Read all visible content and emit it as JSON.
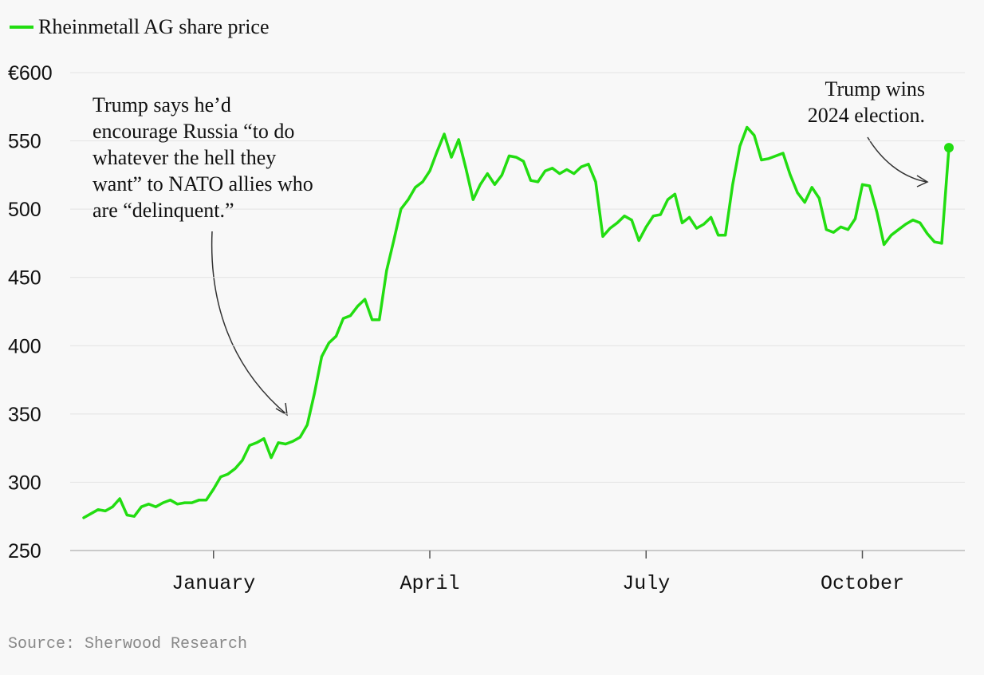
{
  "chart_data": {
    "type": "line",
    "title": "Rheinmetall AG share price",
    "annotations": [
      {
        "lines": [
          "Trump says he’d",
          "encourage Russia “to do",
          "whatever the hell they",
          "want” to NATO allies who",
          "are “delinquent.”"
        ]
      },
      {
        "lines": [
          "Trump wins",
          "2024 election."
        ]
      }
    ],
    "source": "Source: Sherwood Research",
    "categories": [
      null,
      null,
      null,
      null,
      null,
      null,
      null,
      null,
      null,
      null,
      null,
      null,
      null,
      null,
      null,
      null,
      null,
      null,
      "January",
      null,
      null,
      null,
      null,
      null,
      null,
      null,
      null,
      null,
      null,
      null,
      null,
      null,
      null,
      null,
      null,
      null,
      null,
      null,
      null,
      null,
      null,
      null,
      null,
      null,
      null,
      null,
      null,
      null,
      "April",
      null,
      null,
      null,
      null,
      null,
      null,
      null,
      null,
      null,
      null,
      null,
      null,
      null,
      null,
      null,
      null,
      null,
      null,
      null,
      null,
      null,
      null,
      null,
      null,
      null,
      null,
      null,
      null,
      null,
      "July",
      null,
      null,
      null,
      null,
      null,
      null,
      null,
      null,
      null,
      null,
      null,
      null,
      null,
      null,
      null,
      null,
      null,
      null,
      null,
      null,
      null,
      null,
      null,
      null,
      null,
      null,
      null,
      null,
      null,
      "October",
      null,
      null,
      null,
      null,
      null,
      null,
      null,
      null,
      null,
      null,
      null,
      null
    ],
    "series": [
      {
        "name": "Rheinmetall AG share price",
        "color": "#22dd11",
        "values": [
          274,
          277,
          280,
          279,
          282,
          288,
          276,
          275,
          282,
          284,
          282,
          285,
          287,
          284,
          285,
          285,
          287,
          287,
          295,
          304,
          306,
          310,
          316,
          327,
          329,
          332,
          318,
          329,
          328,
          330,
          333,
          342,
          365,
          392,
          402,
          407,
          420,
          422,
          429,
          434,
          419,
          419,
          455,
          477,
          500,
          507,
          516,
          520,
          528,
          542,
          555,
          538,
          551,
          530,
          507,
          518,
          526,
          518,
          525,
          539,
          538,
          535,
          521,
          520,
          528,
          530,
          526,
          529,
          526,
          531,
          533,
          520,
          480,
          486,
          490,
          495,
          492,
          477,
          487,
          495,
          496,
          507,
          511,
          490,
          494,
          486,
          489,
          494,
          481,
          481,
          518,
          546,
          560,
          554,
          536,
          537,
          539,
          541,
          525,
          512,
          505,
          516,
          508,
          485,
          483,
          487,
          485,
          493,
          518,
          517,
          498,
          474,
          481,
          485,
          489,
          492,
          490,
          482,
          476,
          475,
          545
        ]
      }
    ],
    "ylim": [
      250,
      600
    ],
    "yticks": [
      250,
      300,
      350,
      400,
      450,
      500,
      550,
      {
        "value": 600,
        "label": "€600"
      }
    ],
    "grid": true
  }
}
